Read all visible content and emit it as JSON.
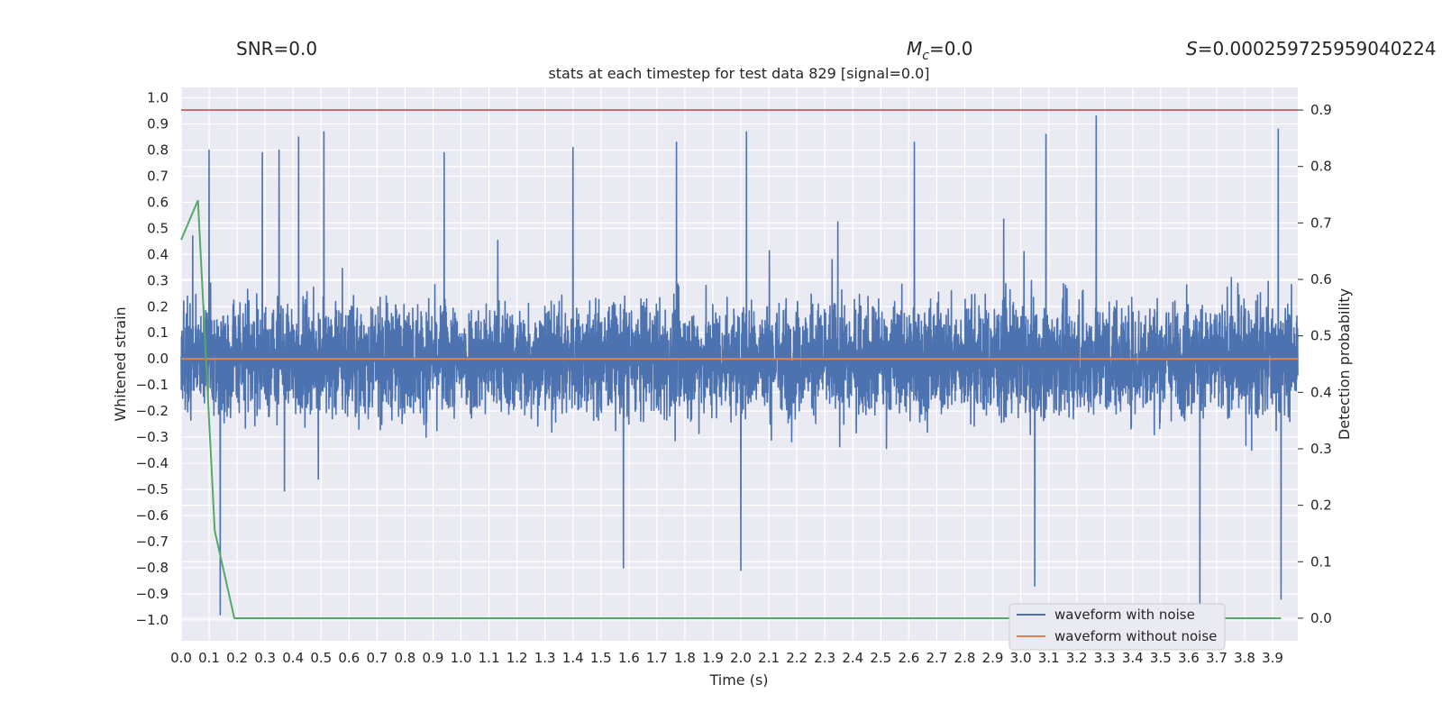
{
  "header": {
    "snr": "SNR=0.0",
    "mc_symbol": "M",
    "mc_sub": "c",
    "mc_value": "=0.0",
    "s_symbol": "S",
    "s_value": "=0.000259725959040224"
  },
  "chart_data": {
    "type": "line",
    "title": "stats at each timestep for test data 829 [signal=0.0]",
    "xlabel": "Time (s)",
    "ylabel": "Whitened strain",
    "y2label": "Detection probability",
    "xlim": [
      0.0,
      3.99
    ],
    "ylim": [
      -1.08,
      1.04
    ],
    "y2lim": [
      -0.04,
      0.94
    ],
    "x_ticks": [
      "0.0",
      "0.1",
      "0.2",
      "0.3",
      "0.4",
      "0.5",
      "0.6",
      "0.7",
      "0.8",
      "0.9",
      "1.0",
      "1.1",
      "1.2",
      "1.3",
      "1.4",
      "1.5",
      "1.6",
      "1.7",
      "1.8",
      "1.9",
      "2.0",
      "2.1",
      "2.2",
      "2.3",
      "2.4",
      "2.5",
      "2.6",
      "2.7",
      "2.8",
      "2.9",
      "3.0",
      "3.1",
      "3.2",
      "3.3",
      "3.4",
      "3.5",
      "3.6",
      "3.7",
      "3.8",
      "3.9"
    ],
    "y_ticks": [
      "1.0",
      "0.9",
      "0.8",
      "0.7",
      "0.6",
      "0.5",
      "0.4",
      "0.3",
      "0.2",
      "0.1",
      "0.0",
      "−0.1",
      "−0.2",
      "−0.3",
      "−0.4",
      "−0.5",
      "−0.6",
      "−0.7",
      "−0.8",
      "−0.9",
      "−1.0"
    ],
    "y2_ticks": [
      "0.9",
      "0.8",
      "0.7",
      "0.6",
      "0.5",
      "0.4",
      "0.3",
      "0.2",
      "0.1",
      "0.0"
    ],
    "grid": true,
    "legend_position": "bottom-right",
    "colors": {
      "noisy": "#4c72b0",
      "clean": "#dd8452",
      "probability": "#55a868",
      "threshold": "#c44e52",
      "plot_bg": "#eaeaf2",
      "grid": "#ffffff"
    },
    "series": [
      {
        "name": "waveform with noise",
        "axis": "left",
        "description_of_sampling": "dense noise, approx 4096 Hz",
        "amplitude_envelope": {
          "typical_max": 0.55,
          "peak_max": 0.93,
          "peak_min": -0.98
        },
        "notable_peaks": [
          {
            "x": 0.1,
            "y": 0.8
          },
          {
            "x": 0.29,
            "y": 0.79
          },
          {
            "x": 0.35,
            "y": 0.8
          },
          {
            "x": 0.42,
            "y": 0.85
          },
          {
            "x": 0.51,
            "y": 0.87
          },
          {
            "x": 0.94,
            "y": 0.79
          },
          {
            "x": 1.4,
            "y": 0.81
          },
          {
            "x": 1.77,
            "y": 0.83
          },
          {
            "x": 2.02,
            "y": 0.87
          },
          {
            "x": 2.62,
            "y": 0.83
          },
          {
            "x": 3.09,
            "y": 0.86
          },
          {
            "x": 3.27,
            "y": 0.93
          },
          {
            "x": 3.92,
            "y": 0.88
          },
          {
            "x": 0.14,
            "y": -0.98
          },
          {
            "x": 1.58,
            "y": -0.8
          },
          {
            "x": 2.0,
            "y": -0.81
          },
          {
            "x": 3.05,
            "y": -0.87
          },
          {
            "x": 3.64,
            "y": -0.97
          },
          {
            "x": 3.93,
            "y": -0.92
          }
        ]
      },
      {
        "name": "waveform without noise",
        "axis": "left",
        "x": [
          0.0,
          3.99
        ],
        "y": [
          0.0,
          0.0
        ]
      },
      {
        "axis": "right",
        "x": [
          0.0,
          0.06,
          0.12,
          0.19,
          3.93
        ],
        "y": [
          0.67,
          0.74,
          0.155,
          0.0,
          0.0
        ]
      },
      {
        "axis": "right",
        "x": [
          0.0,
          3.99
        ],
        "y": [
          0.9,
          0.9
        ]
      }
    ]
  }
}
